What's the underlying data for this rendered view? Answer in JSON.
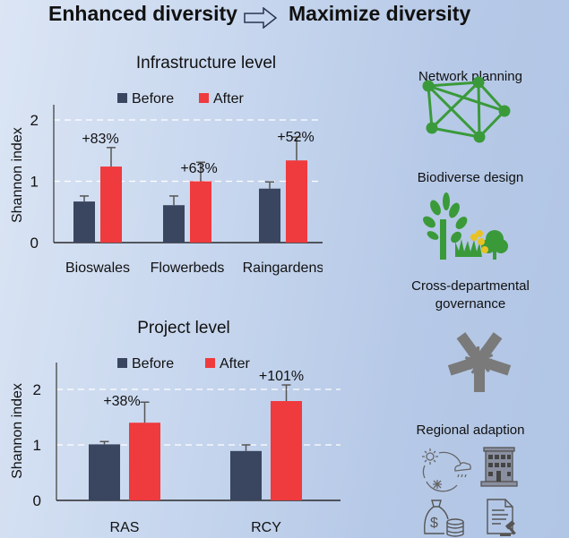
{
  "header": {
    "left_title": "Enhanced diversity",
    "arrow_icon": "hollow-right-arrow",
    "right_title": "Maximize diversity"
  },
  "colors": {
    "before": "#3a4560",
    "after": "#ef3a3e",
    "error_bar": "#555555",
    "gridline": "#ffffff",
    "network_green": "#3a9a3a",
    "icon_gray": "#7a7a7a"
  },
  "chart_data": [
    {
      "type": "bar",
      "title": "Infrastructure level",
      "ylabel": "Shannon index",
      "xlabel": "",
      "ylim": [
        0,
        2.2
      ],
      "yticks": [
        0,
        1,
        2
      ],
      "grid": "dashed at 1 and 2",
      "legend": {
        "position": "top-center",
        "entries": [
          "Before",
          "After"
        ]
      },
      "categories": [
        "Bioswales",
        "Flowerbeds",
        "Raingardens"
      ],
      "series": [
        {
          "name": "Before",
          "values": [
            0.67,
            0.61,
            0.88
          ],
          "error": [
            0.09,
            0.15,
            0.11
          ]
        },
        {
          "name": "After",
          "values": [
            1.24,
            1.0,
            1.34
          ],
          "error": [
            0.31,
            0.31,
            0.38
          ]
        }
      ],
      "annotations": [
        "+83%",
        "+63%",
        "+52%"
      ]
    },
    {
      "type": "bar",
      "title": "Project level",
      "ylabel": "Shannon index",
      "xlabel": "",
      "ylim": [
        0,
        2.5
      ],
      "yticks": [
        0,
        1,
        2
      ],
      "grid": "dashed at 1 and 2",
      "legend": {
        "position": "top-center",
        "entries": [
          "Before",
          "After"
        ]
      },
      "categories": [
        "RAS",
        "RCY"
      ],
      "series": [
        {
          "name": "Before",
          "values": [
            1.01,
            0.89
          ],
          "error": [
            0.05,
            0.11
          ]
        },
        {
          "name": "After",
          "values": [
            1.4,
            1.79
          ],
          "error": [
            0.37,
            0.29
          ]
        }
      ],
      "annotations": [
        "+38%",
        "+101%"
      ]
    }
  ],
  "strategies": [
    {
      "label": "Network planning",
      "icon": "network-graph-icon"
    },
    {
      "label": "Biodiverse design",
      "icon": "trees-grass-flower-icon"
    },
    {
      "label": "Cross-departmental governance",
      "label_lines": [
        "Cross-departmental",
        "governance"
      ],
      "icon": "joined-hands-icon"
    },
    {
      "label": "Regional adaption",
      "icon": "climate-building-money-policy-icons"
    }
  ]
}
